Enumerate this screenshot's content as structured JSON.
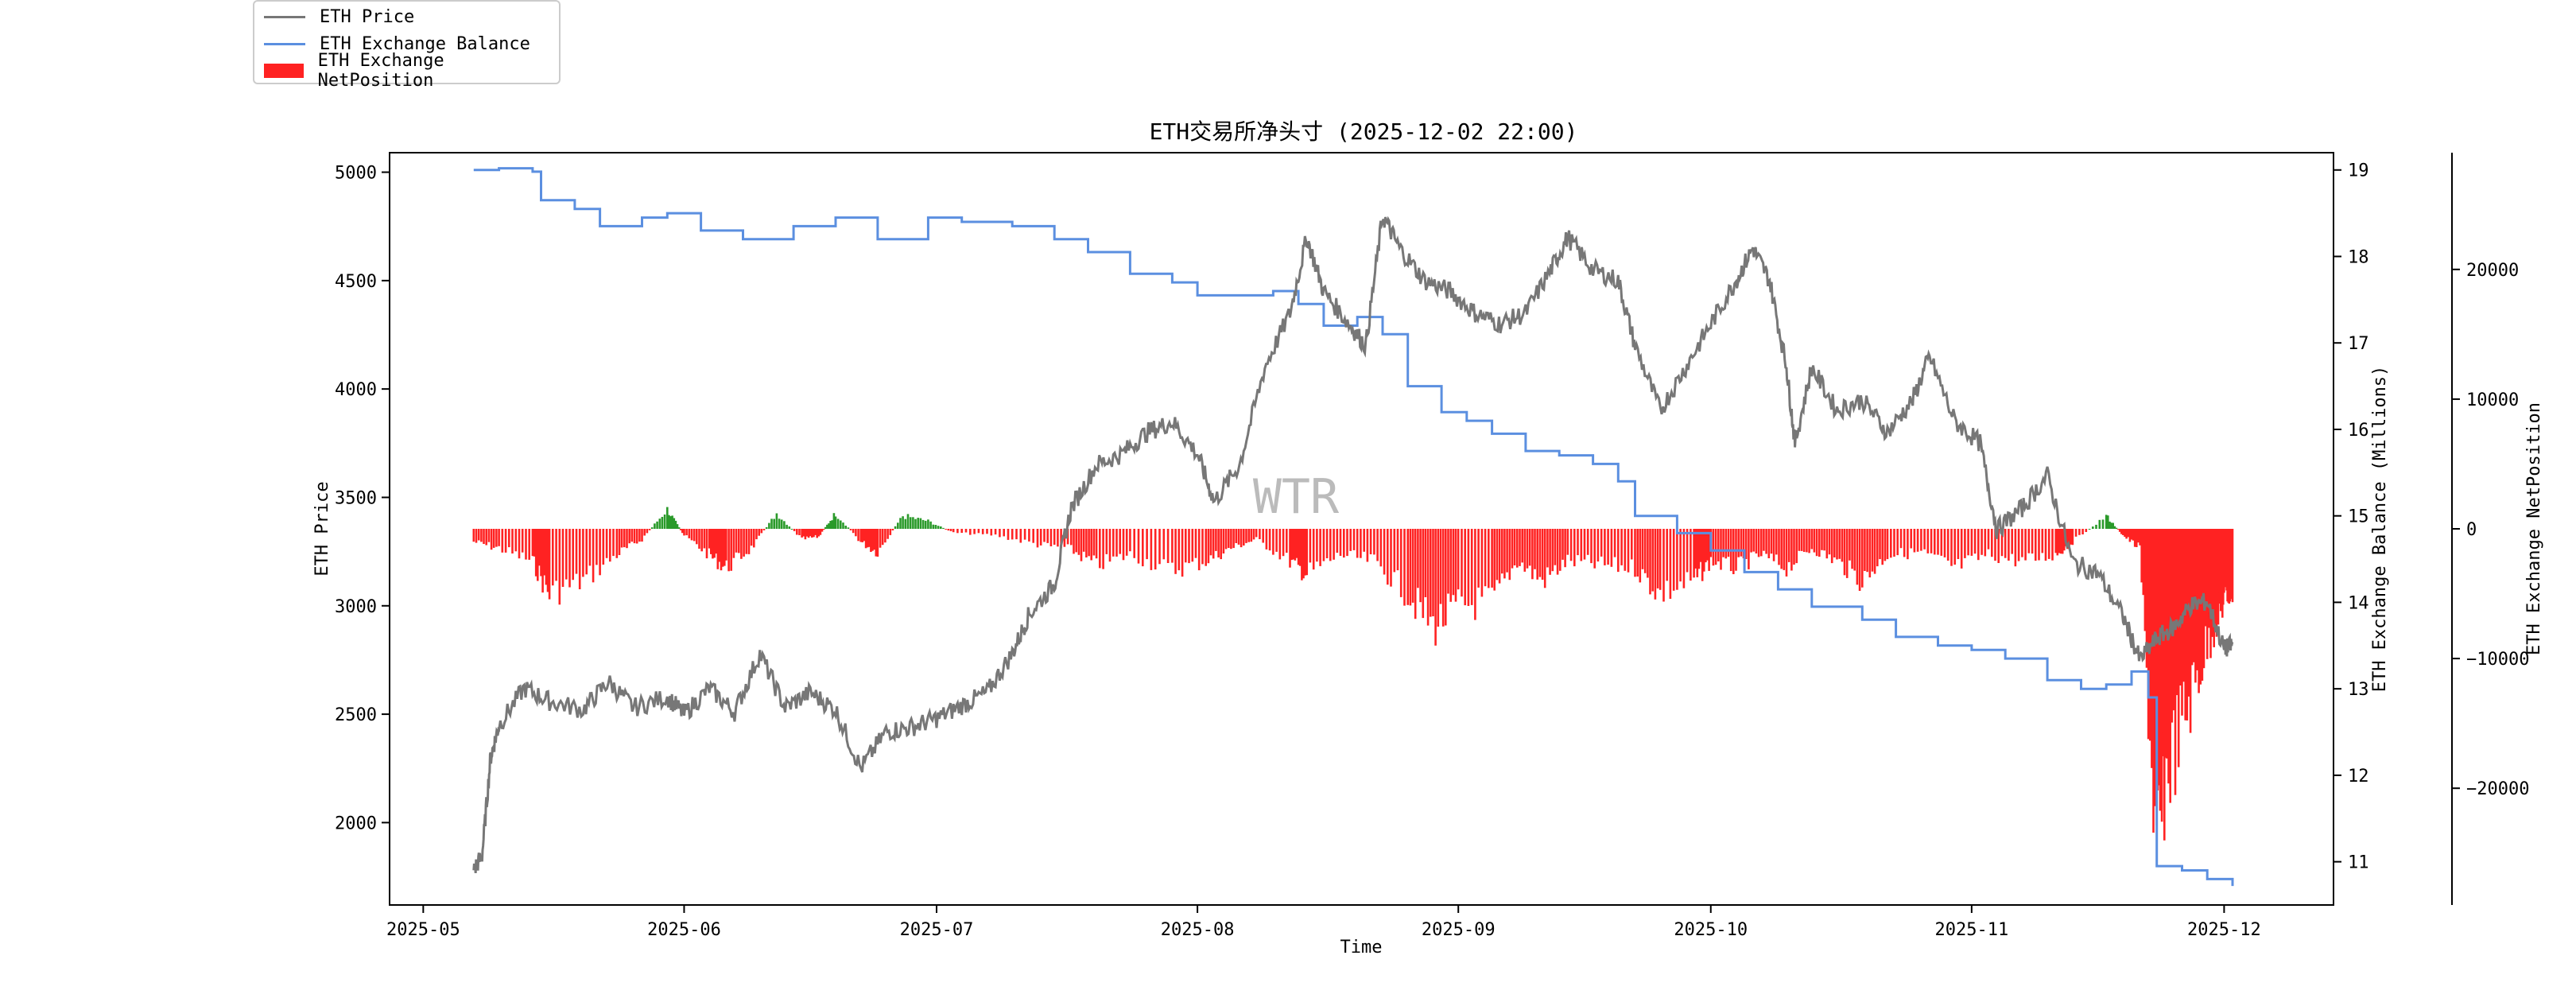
{
  "chart_data": {
    "type": "line",
    "title": "ETH交易所净头寸 (2025-12-02 22:00)",
    "watermark": "WTR",
    "xlabel": "Time",
    "ylabel_left": "ETH Price",
    "ylabel_right1": "ETH Exchange Balance (Millions)",
    "ylabel_right2": "ETH Exchange NetPosition",
    "x_ticks": [
      "2025-05",
      "2025-06",
      "2025-07",
      "2025-08",
      "2025-09",
      "2025-10",
      "2025-11",
      "2025-12"
    ],
    "y_left_ticks": [
      "2000",
      "2500",
      "3000",
      "3500",
      "4000",
      "4500",
      "5000"
    ],
    "y_right1_ticks": [
      "11",
      "12",
      "13",
      "14",
      "15",
      "16",
      "17",
      "18",
      "19"
    ],
    "y_right2_ticks": [
      "−20000",
      "−10000",
      "0",
      "10000",
      "20000"
    ],
    "x_range": [
      "2025-04-27",
      "2025-12-14"
    ],
    "y_left_range": [
      1620,
      5090
    ],
    "y_right1_range": [
      10.5,
      19.2
    ],
    "y_right2_range": [
      -29000,
      29000
    ],
    "legend": [
      {
        "label": "ETH Price",
        "kind": "line",
        "color": "#777777"
      },
      {
        "label": "ETH Exchange Balance",
        "kind": "line",
        "color": "#5b8fe0"
      },
      {
        "label": "ETH Exchange NetPosition",
        "kind": "bar",
        "color": "#ff2222"
      }
    ],
    "colors": {
      "price": "#777777",
      "balance": "#5b8fe0",
      "net_negative": "#ff2222",
      "net_positive": "#2a9a2a"
    },
    "series": [
      {
        "name": "ETH Price",
        "axis": "left",
        "points": [
          [
            "2025-05-07",
            1780
          ],
          [
            "2025-05-08",
            1850
          ],
          [
            "2025-05-09",
            2300
          ],
          [
            "2025-05-10",
            2450
          ],
          [
            "2025-05-13",
            2620
          ],
          [
            "2025-05-16",
            2560
          ],
          [
            "2025-05-20",
            2520
          ],
          [
            "2025-05-23",
            2650
          ],
          [
            "2025-05-26",
            2530
          ],
          [
            "2025-05-30",
            2580
          ],
          [
            "2025-06-01",
            2500
          ],
          [
            "2025-06-04",
            2620
          ],
          [
            "2025-06-07",
            2510
          ],
          [
            "2025-06-10",
            2780
          ],
          [
            "2025-06-13",
            2530
          ],
          [
            "2025-06-16",
            2600
          ],
          [
            "2025-06-19",
            2520
          ],
          [
            "2025-06-22",
            2250
          ],
          [
            "2025-06-25",
            2420
          ],
          [
            "2025-06-28",
            2440
          ],
          [
            "2025-07-01",
            2480
          ],
          [
            "2025-07-04",
            2540
          ],
          [
            "2025-07-07",
            2600
          ],
          [
            "2025-07-10",
            2780
          ],
          [
            "2025-07-12",
            2960
          ],
          [
            "2025-07-15",
            3100
          ],
          [
            "2025-07-17",
            3450
          ],
          [
            "2025-07-20",
            3650
          ],
          [
            "2025-07-23",
            3700
          ],
          [
            "2025-07-26",
            3800
          ],
          [
            "2025-07-29",
            3850
          ],
          [
            "2025-08-01",
            3700
          ],
          [
            "2025-08-03",
            3480
          ],
          [
            "2025-08-06",
            3650
          ],
          [
            "2025-08-09",
            4100
          ],
          [
            "2025-08-12",
            4350
          ],
          [
            "2025-08-14",
            4700
          ],
          [
            "2025-08-16",
            4450
          ],
          [
            "2025-08-19",
            4300
          ],
          [
            "2025-08-21",
            4200
          ],
          [
            "2025-08-23",
            4800
          ],
          [
            "2025-08-25",
            4650
          ],
          [
            "2025-08-28",
            4500
          ],
          [
            "2025-08-31",
            4450
          ],
          [
            "2025-09-03",
            4350
          ],
          [
            "2025-09-06",
            4300
          ],
          [
            "2025-09-09",
            4350
          ],
          [
            "2025-09-12",
            4550
          ],
          [
            "2025-09-14",
            4700
          ],
          [
            "2025-09-17",
            4550
          ],
          [
            "2025-09-20",
            4500
          ],
          [
            "2025-09-22",
            4200
          ],
          [
            "2025-09-25",
            3900
          ],
          [
            "2025-09-28",
            4100
          ],
          [
            "2025-10-01",
            4300
          ],
          [
            "2025-10-04",
            4500
          ],
          [
            "2025-10-06",
            4650
          ],
          [
            "2025-10-08",
            4500
          ],
          [
            "2025-10-10",
            4100
          ],
          [
            "2025-10-11",
            3750
          ],
          [
            "2025-10-13",
            4100
          ],
          [
            "2025-10-16",
            3900
          ],
          [
            "2025-10-19",
            3950
          ],
          [
            "2025-10-22",
            3800
          ],
          [
            "2025-10-25",
            3950
          ],
          [
            "2025-10-27",
            4150
          ],
          [
            "2025-10-30",
            3850
          ],
          [
            "2025-11-02",
            3750
          ],
          [
            "2025-11-04",
            3350
          ],
          [
            "2025-11-07",
            3450
          ],
          [
            "2025-11-10",
            3600
          ],
          [
            "2025-11-13",
            3200
          ],
          [
            "2025-11-16",
            3150
          ],
          [
            "2025-11-19",
            2950
          ],
          [
            "2025-11-21",
            2750
          ],
          [
            "2025-11-23",
            2850
          ],
          [
            "2025-11-25",
            2900
          ],
          [
            "2025-11-27",
            3000
          ],
          [
            "2025-11-29",
            3020
          ],
          [
            "2025-12-01",
            2800
          ],
          [
            "2025-12-02",
            2820
          ]
        ]
      },
      {
        "name": "ETH Exchange Balance",
        "axis": "right1",
        "points": [
          [
            "2025-05-07",
            19.0
          ],
          [
            "2025-05-10",
            19.02
          ],
          [
            "2025-05-14",
            18.98
          ],
          [
            "2025-05-15",
            18.65
          ],
          [
            "2025-05-19",
            18.55
          ],
          [
            "2025-05-22",
            18.35
          ],
          [
            "2025-05-27",
            18.45
          ],
          [
            "2025-05-30",
            18.5
          ],
          [
            "2025-06-03",
            18.3
          ],
          [
            "2025-06-08",
            18.2
          ],
          [
            "2025-06-14",
            18.35
          ],
          [
            "2025-06-19",
            18.45
          ],
          [
            "2025-06-24",
            18.2
          ],
          [
            "2025-06-30",
            18.45
          ],
          [
            "2025-07-04",
            18.4
          ],
          [
            "2025-07-10",
            18.35
          ],
          [
            "2025-07-15",
            18.2
          ],
          [
            "2025-07-19",
            18.05
          ],
          [
            "2025-07-24",
            17.8
          ],
          [
            "2025-07-29",
            17.7
          ],
          [
            "2025-08-01",
            17.55
          ],
          [
            "2025-08-06",
            17.55
          ],
          [
            "2025-08-10",
            17.6
          ],
          [
            "2025-08-13",
            17.45
          ],
          [
            "2025-08-16",
            17.2
          ],
          [
            "2025-08-20",
            17.3
          ],
          [
            "2025-08-23",
            17.1
          ],
          [
            "2025-08-26",
            16.5
          ],
          [
            "2025-08-30",
            16.2
          ],
          [
            "2025-09-02",
            16.1
          ],
          [
            "2025-09-05",
            15.95
          ],
          [
            "2025-09-09",
            15.75
          ],
          [
            "2025-09-13",
            15.7
          ],
          [
            "2025-09-17",
            15.6
          ],
          [
            "2025-09-20",
            15.4
          ],
          [
            "2025-09-22",
            15.0
          ],
          [
            "2025-09-27",
            14.8
          ],
          [
            "2025-10-01",
            14.6
          ],
          [
            "2025-10-05",
            14.35
          ],
          [
            "2025-10-09",
            14.15
          ],
          [
            "2025-10-13",
            13.95
          ],
          [
            "2025-10-19",
            13.8
          ],
          [
            "2025-10-23",
            13.6
          ],
          [
            "2025-10-28",
            13.5
          ],
          [
            "2025-11-01",
            13.45
          ],
          [
            "2025-11-05",
            13.35
          ],
          [
            "2025-11-10",
            13.1
          ],
          [
            "2025-11-14",
            13.0
          ],
          [
            "2025-11-17",
            13.05
          ],
          [
            "2025-11-20",
            13.2
          ],
          [
            "2025-11-22",
            12.9
          ],
          [
            "2025-11-23",
            10.95
          ],
          [
            "2025-11-26",
            10.9
          ],
          [
            "2025-11-29",
            10.8
          ],
          [
            "2025-12-02",
            10.72
          ]
        ]
      },
      {
        "name": "ETH Exchange NetPosition",
        "axis": "right2",
        "type": "bar",
        "points": [
          [
            "2025-05-07",
            -1000
          ],
          [
            "2025-05-10",
            -1500
          ],
          [
            "2025-05-14",
            -2500
          ],
          [
            "2025-05-16",
            -5000
          ],
          [
            "2025-05-20",
            -4000
          ],
          [
            "2025-05-24",
            -2000
          ],
          [
            "2025-05-27",
            -800
          ],
          [
            "2025-05-30",
            1500
          ],
          [
            "2025-06-01",
            -500
          ],
          [
            "2025-06-04",
            -2000
          ],
          [
            "2025-06-06",
            -3000
          ],
          [
            "2025-06-09",
            -1500
          ],
          [
            "2025-06-12",
            1200
          ],
          [
            "2025-06-15",
            -800
          ],
          [
            "2025-06-17",
            -600
          ],
          [
            "2025-06-19",
            1200
          ],
          [
            "2025-06-22",
            -1000
          ],
          [
            "2025-06-24",
            -1800
          ],
          [
            "2025-06-27",
            1000
          ],
          [
            "2025-06-30",
            600
          ],
          [
            "2025-07-03",
            -300
          ],
          [
            "2025-07-08",
            -500
          ],
          [
            "2025-07-13",
            -1200
          ],
          [
            "2025-07-17",
            -1600
          ],
          [
            "2025-07-20",
            -2800
          ],
          [
            "2025-07-24",
            -2000
          ],
          [
            "2025-07-29",
            -3200
          ],
          [
            "2025-08-02",
            -2500
          ],
          [
            "2025-08-05",
            -1500
          ],
          [
            "2025-08-08",
            -800
          ],
          [
            "2025-08-12",
            -2500
          ],
          [
            "2025-08-14",
            -3500
          ],
          [
            "2025-08-18",
            -2000
          ],
          [
            "2025-08-22",
            -2500
          ],
          [
            "2025-08-26",
            -5000
          ],
          [
            "2025-08-29",
            -7500
          ],
          [
            "2025-09-01",
            -6000
          ],
          [
            "2025-09-05",
            -5500
          ],
          [
            "2025-09-08",
            -2500
          ],
          [
            "2025-09-11",
            -4000
          ],
          [
            "2025-09-14",
            -2500
          ],
          [
            "2025-09-18",
            -2800
          ],
          [
            "2025-09-22",
            -3000
          ],
          [
            "2025-09-25",
            -5000
          ],
          [
            "2025-09-29",
            -4000
          ],
          [
            "2025-10-01",
            -2500
          ],
          [
            "2025-10-04",
            -3000
          ],
          [
            "2025-10-07",
            -2000
          ],
          [
            "2025-10-10",
            -3000
          ],
          [
            "2025-10-13",
            -1500
          ],
          [
            "2025-10-16",
            -2500
          ],
          [
            "2025-10-19",
            -4000
          ],
          [
            "2025-10-22",
            -2000
          ],
          [
            "2025-10-26",
            -1800
          ],
          [
            "2025-10-30",
            -3000
          ],
          [
            "2025-11-03",
            -2000
          ],
          [
            "2025-11-07",
            -2500
          ],
          [
            "2025-11-11",
            -2000
          ],
          [
            "2025-11-13",
            -1000
          ],
          [
            "2025-11-17",
            1000
          ],
          [
            "2025-11-19",
            -500
          ],
          [
            "2025-11-21",
            -1500
          ],
          [
            "2025-11-23",
            -25500
          ],
          [
            "2025-11-24",
            -19000
          ],
          [
            "2025-11-26",
            -15000
          ],
          [
            "2025-11-28",
            -11000
          ],
          [
            "2025-11-30",
            -7000
          ],
          [
            "2025-12-01",
            -5500
          ],
          [
            "2025-12-02",
            -4800
          ]
        ]
      }
    ]
  }
}
